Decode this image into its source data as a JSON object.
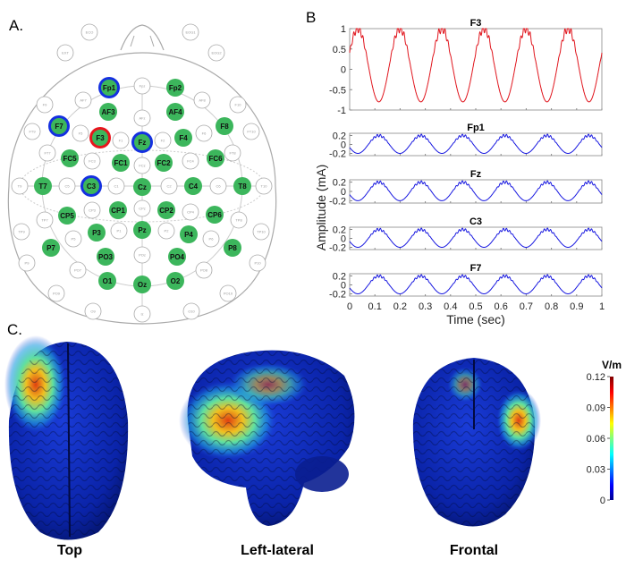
{
  "panels": {
    "a": "A.",
    "b": "B",
    "c": "C."
  },
  "electrodes": {
    "passive": [
      "ECO",
      "EOG1",
      "EXT",
      "EOG2",
      "Fpz",
      "AF7",
      "AFz",
      "AF8",
      "F9",
      "F10",
      "F5",
      "F1",
      "F2",
      "F6",
      "FT9",
      "FT10",
      "FT7",
      "FT8",
      "FC3",
      "FCz",
      "FC4",
      "T9",
      "C5",
      "C1",
      "C2",
      "C6",
      "T10",
      "TP7",
      "CP3",
      "CPz",
      "CP4",
      "TP8",
      "TP9",
      "P5",
      "P1",
      "P2",
      "P6",
      "TP10",
      "P9",
      "POz",
      "P10",
      "PO7",
      "PO8",
      "PO9",
      "PO10",
      "O9",
      "Iz",
      "O10"
    ],
    "active": [
      "Fp1",
      "Fp2",
      "AF3",
      "AF4",
      "F7",
      "F3",
      "Fz",
      "F4",
      "F8",
      "FC5",
      "FC1",
      "FC2",
      "FC6",
      "T7",
      "C3",
      "Cz",
      "C4",
      "T8",
      "CP5",
      "CP1",
      "CP2",
      "CP6",
      "P7",
      "P3",
      "Pz",
      "P4",
      "P8",
      "PO3",
      "PO4",
      "O1",
      "Oz",
      "O2"
    ],
    "anode": [
      "F3"
    ],
    "cathodes": [
      "Fp1",
      "F7",
      "Fz",
      "C3"
    ],
    "colors": {
      "active": "#3cb65c",
      "anode": "#e8141c",
      "cathode": "#1430e0"
    }
  },
  "chart_data": {
    "type": "line",
    "ylabel": "Amplitude (mA)",
    "xlabel": "Time (sec)",
    "xlim": [
      0,
      1
    ],
    "xticks": [
      "0",
      "0.1",
      "0.2",
      "0.3",
      "0.4",
      "0.5",
      "0.6",
      "0.7",
      "0.8",
      "0.9",
      "1"
    ],
    "frequency_hz": 6,
    "ripple_hz": 80,
    "series": [
      {
        "name": "F3",
        "color": "#e0141c",
        "ylim": [
          -1,
          1
        ],
        "yticks": [
          "1",
          "0.5",
          "0",
          "-0.5",
          "-1"
        ],
        "offset": 0.1,
        "amplitude": 0.9,
        "ripple": 0.1,
        "phase": 1
      },
      {
        "name": "Fp1",
        "color": "#1a1ae0",
        "ylim": [
          -0.25,
          0.25
        ],
        "yticks": [
          "0.2",
          "0",
          "-0.2"
        ],
        "offset": 0,
        "amplitude": 0.2,
        "ripple": 0.03,
        "phase": -1
      },
      {
        "name": "Fz",
        "color": "#1a1ae0",
        "ylim": [
          -0.25,
          0.25
        ],
        "yticks": [
          "0.2",
          "0",
          "-0.2"
        ],
        "offset": 0,
        "amplitude": 0.2,
        "ripple": 0.03,
        "phase": -1
      },
      {
        "name": "C3",
        "color": "#1a1ae0",
        "ylim": [
          -0.25,
          0.25
        ],
        "yticks": [
          "0.2",
          "0",
          "-0.2"
        ],
        "offset": 0,
        "amplitude": 0.2,
        "ripple": 0.03,
        "phase": -1
      },
      {
        "name": "F7",
        "color": "#1a1ae0",
        "ylim": [
          -0.25,
          0.25
        ],
        "yticks": [
          "0.2",
          "0",
          "-0.2"
        ],
        "offset": 0,
        "amplitude": 0.2,
        "ripple": 0.03,
        "phase": -1
      }
    ]
  },
  "brains": {
    "views": [
      "Top",
      "Left-lateral",
      "Frontal"
    ],
    "colorbar": {
      "unit": "V/m",
      "ticks": [
        "0.12",
        "0.09",
        "0.06",
        "0.03",
        "0"
      ],
      "range": [
        0,
        0.12
      ]
    }
  }
}
